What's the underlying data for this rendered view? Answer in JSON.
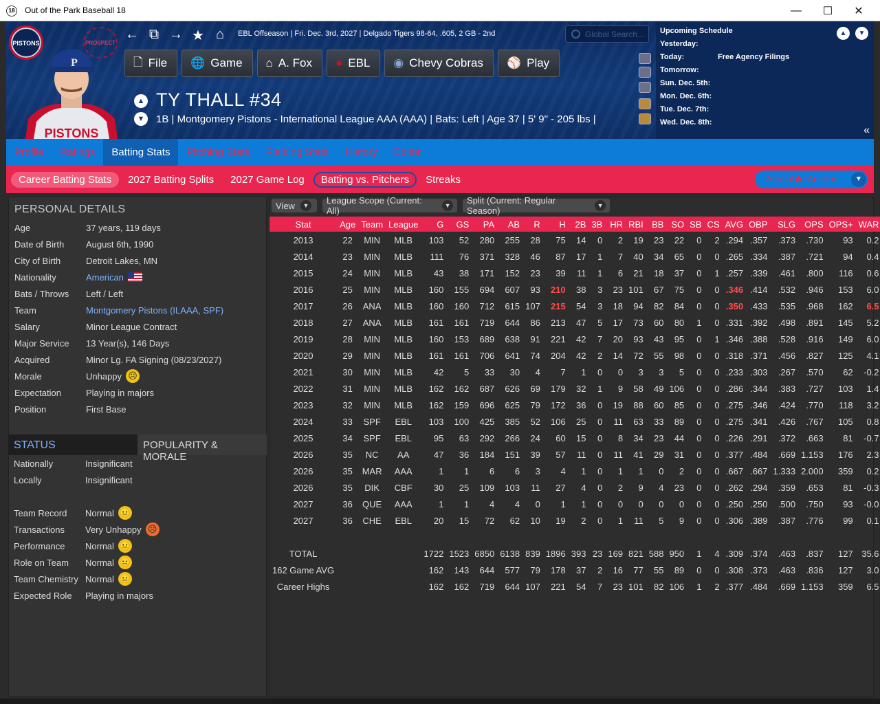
{
  "window": {
    "title": "Out of the Park Baseball 18",
    "icon": "18",
    "min": "—",
    "max": "☐",
    "close": "✕"
  },
  "header": {
    "breadcrumb": "EBL Offseason  |  Fri. Dec. 3rd, 2027  |  Delgado Tigers   98-64, .605, 2 GB - 2nd",
    "search_placeholder": "Global Search...",
    "logo_text": "PISTONS",
    "mini_logo_text": "PROSPECT",
    "nav": [
      {
        "icon": "🗋",
        "label": "File"
      },
      {
        "icon": "🌐",
        "label": "Game"
      },
      {
        "icon": "⌂",
        "label": "A. Fox"
      },
      {
        "icon": "●",
        "label": "EBL"
      },
      {
        "icon": "◉",
        "label": "Chevy Cobras"
      },
      {
        "icon": "⚾",
        "label": "Play"
      }
    ],
    "player_name": "TY THALL   #34",
    "player_info": "1B | Montgomery Pistons - International League AAA (AAA)  |  Bats: Left  |  Age 37  |  5' 9\" - 205 lbs  |"
  },
  "schedule": {
    "title": "Upcoming Schedule",
    "rows": [
      {
        "day": "Yesterday:",
        "event": ""
      },
      {
        "day": "Today:",
        "event": "Free Agency Filings"
      },
      {
        "day": "Tomorrow:",
        "event": ""
      },
      {
        "day": "Sun. Dec. 5th:",
        "event": ""
      },
      {
        "day": "Mon. Dec. 6th:",
        "event": ""
      },
      {
        "day": "Tue. Dec. 7th:",
        "event": ""
      },
      {
        "day": "Wed. Dec. 8th:",
        "event": ""
      }
    ]
  },
  "tabs_primary": [
    "Profile",
    "Ratings",
    "Batting Stats",
    "Pitching Stats",
    "Fielding Stats",
    "History",
    "Editor"
  ],
  "tabs_primary_active": "Batting Stats",
  "tabs_secondary": [
    "Career Batting Stats",
    "2027 Batting Splits",
    "2027 Game Log",
    "Batting vs. Pitchers",
    "Streaks"
  ],
  "available_actions": "Available Actions",
  "personal": {
    "title": "PERSONAL DETAILS",
    "rows": [
      {
        "k": "Age",
        "v": "37 years, 119 days"
      },
      {
        "k": "Date of Birth",
        "v": "August 6th, 1990"
      },
      {
        "k": "City of Birth",
        "v": "Detroit Lakes, MN"
      },
      {
        "k": "Nationality",
        "v": "American"
      },
      {
        "k": "Bats / Throws",
        "v": "Left / Left"
      },
      {
        "k": "Team",
        "v": "Montgomery Pistons (ILAAA, SPF)"
      },
      {
        "k": "Salary",
        "v": "Minor League Contract"
      },
      {
        "k": "Major Service",
        "v": "13 Year(s), 146 Days"
      },
      {
        "k": "Acquired",
        "v": "Minor Lg. FA Signing (08/23/2027)"
      },
      {
        "k": "Morale",
        "v": "Unhappy"
      },
      {
        "k": "Expectation",
        "v": "Playing in majors"
      },
      {
        "k": "Position",
        "v": "First Base"
      }
    ]
  },
  "status": {
    "tab_status": "STATUS",
    "tab_popularity": "POPULARITY & MORALE",
    "rows1": [
      {
        "k": "Nationally",
        "v": "Insignificant"
      },
      {
        "k": "Locally",
        "v": "Insignificant"
      }
    ],
    "rows2": [
      {
        "k": "Team Record",
        "v": "Normal"
      },
      {
        "k": "Transactions",
        "v": "Very Unhappy"
      },
      {
        "k": "Performance",
        "v": "Normal"
      },
      {
        "k": "Role on Team",
        "v": "Normal"
      },
      {
        "k": "Team Chemistry",
        "v": "Normal"
      },
      {
        "k": "Expected Role",
        "v": "Playing in majors"
      }
    ]
  },
  "toolbar": {
    "view": "View",
    "scope": "League Scope  (Current: All)",
    "split": "Split  (Current: Regular Season)"
  },
  "stats": {
    "columns": [
      "Stat",
      "Age",
      "Team",
      "League",
      "G",
      "GS",
      "PA",
      "AB",
      "R",
      "H",
      "2B",
      "3B",
      "HR",
      "RBI",
      "BB",
      "SO",
      "SB",
      "CS",
      "AVG",
      "OBP",
      "SLG",
      "OPS",
      "OPS+",
      "WAR"
    ],
    "rows": [
      [
        "2013",
        "22",
        "MIN",
        "MLB",
        "103",
        "52",
        "280",
        "255",
        "28",
        "75",
        "14",
        "0",
        "2",
        "19",
        "23",
        "22",
        "0",
        "2",
        ".294",
        ".357",
        ".373",
        ".730",
        "93",
        "0.2"
      ],
      [
        "2014",
        "23",
        "MIN",
        "MLB",
        "111",
        "76",
        "371",
        "328",
        "46",
        "87",
        "17",
        "1",
        "7",
        "40",
        "34",
        "65",
        "0",
        "0",
        ".265",
        ".334",
        ".387",
        ".721",
        "94",
        "0.4"
      ],
      [
        "2015",
        "24",
        "MIN",
        "MLB",
        "43",
        "38",
        "171",
        "152",
        "23",
        "39",
        "11",
        "1",
        "6",
        "21",
        "18",
        "37",
        "0",
        "1",
        ".257",
        ".339",
        ".461",
        ".800",
        "116",
        "0.6"
      ],
      [
        "2016",
        "25",
        "MIN",
        "MLB",
        "160",
        "155",
        "694",
        "607",
        "93",
        "210",
        "38",
        "3",
        "23",
        "101",
        "67",
        "75",
        "0",
        "0",
        ".346",
        ".414",
        ".532",
        ".946",
        "153",
        "6.0"
      ],
      [
        "2017",
        "26",
        "ANA",
        "MLB",
        "160",
        "160",
        "712",
        "615",
        "107",
        "215",
        "54",
        "3",
        "18",
        "94",
        "82",
        "84",
        "0",
        "0",
        ".350",
        ".433",
        ".535",
        ".968",
        "162",
        "6.5"
      ],
      [
        "2018",
        "27",
        "ANA",
        "MLB",
        "161",
        "161",
        "719",
        "644",
        "86",
        "213",
        "47",
        "5",
        "17",
        "73",
        "60",
        "80",
        "1",
        "0",
        ".331",
        ".392",
        ".498",
        ".891",
        "145",
        "5.2"
      ],
      [
        "2019",
        "28",
        "MIN",
        "MLB",
        "160",
        "153",
        "689",
        "638",
        "91",
        "221",
        "42",
        "7",
        "20",
        "93",
        "43",
        "95",
        "0",
        "1",
        ".346",
        ".388",
        ".528",
        ".916",
        "149",
        "6.0"
      ],
      [
        "2020",
        "29",
        "MIN",
        "MLB",
        "161",
        "161",
        "706",
        "641",
        "74",
        "204",
        "42",
        "2",
        "14",
        "72",
        "55",
        "98",
        "0",
        "0",
        ".318",
        ".371",
        ".456",
        ".827",
        "125",
        "4.1"
      ],
      [
        "2021",
        "30",
        "MIN",
        "MLB",
        "42",
        "5",
        "33",
        "30",
        "4",
        "7",
        "1",
        "0",
        "0",
        "3",
        "3",
        "5",
        "0",
        "0",
        ".233",
        ".303",
        ".267",
        ".570",
        "62",
        "-0.2"
      ],
      [
        "2022",
        "31",
        "MIN",
        "MLB",
        "162",
        "162",
        "687",
        "626",
        "69",
        "179",
        "32",
        "1",
        "9",
        "58",
        "49",
        "106",
        "0",
        "0",
        ".286",
        ".344",
        ".383",
        ".727",
        "103",
        "1.4"
      ],
      [
        "2023",
        "32",
        "MIN",
        "MLB",
        "162",
        "159",
        "696",
        "625",
        "79",
        "172",
        "36",
        "0",
        "19",
        "88",
        "60",
        "85",
        "0",
        "0",
        ".275",
        ".346",
        ".424",
        ".770",
        "118",
        "3.2"
      ],
      [
        "2024",
        "33",
        "SPF",
        "EBL",
        "103",
        "100",
        "425",
        "385",
        "52",
        "106",
        "25",
        "0",
        "11",
        "63",
        "33",
        "89",
        "0",
        "0",
        ".275",
        ".341",
        ".426",
        ".767",
        "105",
        "0.8"
      ],
      [
        "2025",
        "34",
        "SPF",
        "EBL",
        "95",
        "63",
        "292",
        "266",
        "24",
        "60",
        "15",
        "0",
        "8",
        "34",
        "23",
        "44",
        "0",
        "0",
        ".226",
        ".291",
        ".372",
        ".663",
        "81",
        "-0.7"
      ],
      [
        "2026",
        "35",
        "NC",
        "AA",
        "47",
        "36",
        "184",
        "151",
        "39",
        "57",
        "11",
        "0",
        "11",
        "41",
        "29",
        "31",
        "0",
        "0",
        ".377",
        ".484",
        ".669",
        "1.153",
        "176",
        "2.3"
      ],
      [
        "2026",
        "35",
        "MAR",
        "AAA",
        "1",
        "1",
        "6",
        "6",
        "3",
        "4",
        "1",
        "0",
        "1",
        "1",
        "0",
        "2",
        "0",
        "0",
        ".667",
        ".667",
        "1.333",
        "2.000",
        "359",
        "0.2"
      ],
      [
        "2026",
        "35",
        "DIK",
        "CBF",
        "30",
        "25",
        "109",
        "103",
        "11",
        "27",
        "4",
        "0",
        "2",
        "9",
        "4",
        "23",
        "0",
        "0",
        ".262",
        ".294",
        ".359",
        ".653",
        "81",
        "-0.3"
      ],
      [
        "2027",
        "36",
        "QUE",
        "AAA",
        "1",
        "1",
        "4",
        "4",
        "0",
        "1",
        "1",
        "0",
        "0",
        "0",
        "0",
        "0",
        "0",
        "0",
        ".250",
        ".250",
        ".500",
        ".750",
        "93",
        "-0.0"
      ],
      [
        "2027",
        "36",
        "CHE",
        "EBL",
        "20",
        "15",
        "72",
        "62",
        "10",
        "19",
        "2",
        "0",
        "1",
        "11",
        "5",
        "9",
        "0",
        "0",
        ".306",
        ".389",
        ".387",
        ".776",
        "99",
        "0.1"
      ]
    ],
    "totals": [
      [
        "TOTAL",
        "",
        "",
        "",
        "1722",
        "1523",
        "6850",
        "6138",
        "839",
        "1896",
        "393",
        "23",
        "169",
        "821",
        "588",
        "950",
        "1",
        "4",
        ".309",
        ".374",
        ".463",
        ".837",
        "127",
        "35.6"
      ],
      [
        "162 Game AVG",
        "",
        "",
        "",
        "162",
        "143",
        "644",
        "577",
        "79",
        "178",
        "37",
        "2",
        "16",
        "77",
        "55",
        "89",
        "0",
        "0",
        ".308",
        ".373",
        ".463",
        ".836",
        "127",
        "3.0"
      ],
      [
        "Career Highs",
        "",
        "",
        "",
        "162",
        "162",
        "719",
        "644",
        "107",
        "221",
        "54",
        "7",
        "23",
        "101",
        "82",
        "106",
        "1",
        "2",
        ".377",
        ".484",
        ".669",
        "1.153",
        "359",
        "6.5"
      ]
    ],
    "highlights": [
      [
        3,
        9
      ],
      [
        3,
        18
      ],
      [
        4,
        9
      ],
      [
        4,
        18
      ],
      [
        4,
        23
      ]
    ]
  }
}
